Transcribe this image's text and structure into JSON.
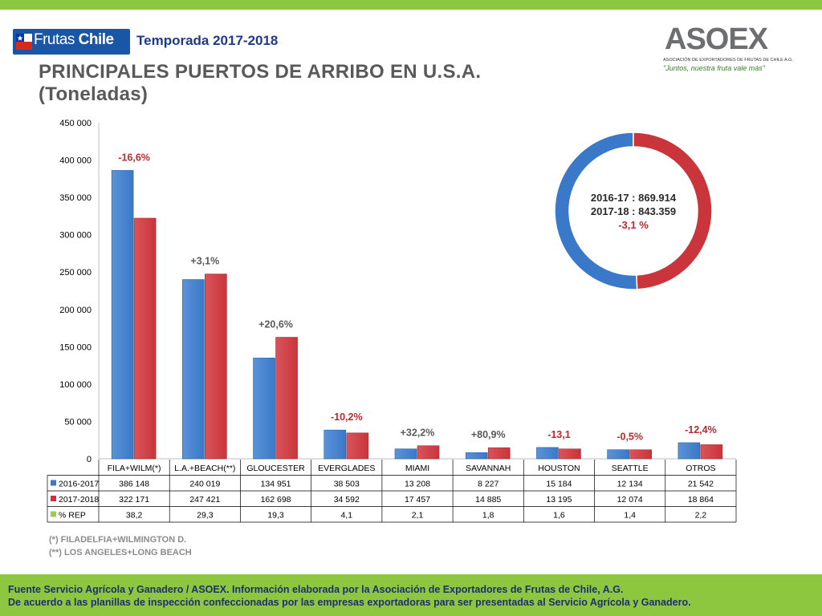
{
  "header": {
    "brand_name": "Frutas de Chile",
    "brand_text_1": "Frutas",
    "brand_text_2": "Chile",
    "season": "Temporada 2017-2018",
    "title_line1": "PRINCIPALES PUERTOS DE ARRIBO EN U.S.A.",
    "title_line2": "(Toneladas)",
    "right_logo": "ASOEX",
    "right_logo_assoc": "ASOCIACIÓN DE EXPORTADORES DE FRUTAS DE CHILE A.G.",
    "right_logo_slogan": "\"Juntos, nuestra fruta vale más\""
  },
  "colors": {
    "series_2016": "#3a78c9",
    "series_2017": "#c9353a",
    "rep": "#9acd4a",
    "green_bar": "#8dc63f",
    "negative_label": "#c0272d",
    "positive_label": "#595959"
  },
  "chart_data": [
    {
      "type": "bar",
      "categories": [
        "FILA+WILM(*)",
        "L.A.+BEACH(**)",
        "GLOUCESTER",
        "EVERGLADES",
        "MIAMI",
        "SAVANNAH",
        "HOUSTON",
        "SEATTLE",
        "OTROS"
      ],
      "series": [
        {
          "name": "2016-2017",
          "values": [
            386148,
            240019,
            134951,
            38503,
            13208,
            8227,
            15184,
            12134,
            21542
          ]
        },
        {
          "name": "2017-2018",
          "values": [
            322171,
            247421,
            162698,
            34592,
            17457,
            14885,
            13195,
            12074,
            18864
          ]
        },
        {
          "name": "% REP",
          "values": [
            38.2,
            29.3,
            19.3,
            4.1,
            2.1,
            1.8,
            1.6,
            1.4,
            2.2
          ]
        }
      ],
      "table_values": {
        "2016-2017": [
          "386 148",
          "240 019",
          "134 951",
          "38 503",
          "13 208",
          "8 227",
          "15 184",
          "12 134",
          "21 542"
        ],
        "2017-2018": [
          "322 171",
          "247 421",
          "162 698",
          "34 592",
          "17 457",
          "14 885",
          "13 195",
          "12 074",
          "18 864"
        ],
        "% REP": [
          "38,2",
          "29,3",
          "19,3",
          "4,1",
          "2,1",
          "1,8",
          "1,6",
          "1,4",
          "2,2"
        ]
      },
      "variation_labels": [
        "-16,6%",
        "+3,1%",
        "+20,6%",
        "-10,2%",
        "+32,2%",
        "+80,9%",
        "-13,1",
        "-0,5%",
        "-12,4%"
      ],
      "yticks": [
        "0",
        "50 000",
        "100 000",
        "150 000",
        "200 000",
        "250 000",
        "300 000",
        "350 000",
        "400 000",
        "450 000"
      ],
      "ylim": [
        0,
        450000
      ],
      "grid": false,
      "legend": "data-table"
    },
    {
      "type": "pie",
      "variant": "donut",
      "labels": [
        "2016-17",
        "2017-18"
      ],
      "values": [
        869.914,
        843.359
      ],
      "center_text": {
        "line1": "2016-17   : 869.914",
        "line2": "2017-18   : 843.359",
        "line3": "-3,1 %"
      }
    }
  ],
  "notes": {
    "note1": "(*)   FILADELFIA+WILMINGTON D.",
    "note2": "(**) LOS ANGELES+LONG BEACH"
  },
  "footer": {
    "line1": "Fuente Servicio Agrícola y Ganadero / ASOEX. Información elaborada por la Asociación de Exportadores de  Frutas de Chile, A.G.",
    "line2": "De acuerdo a las planillas de inspección confeccionadas por las empresas exportadoras  para ser presentadas al Servicio Agrícola y Ganadero."
  }
}
